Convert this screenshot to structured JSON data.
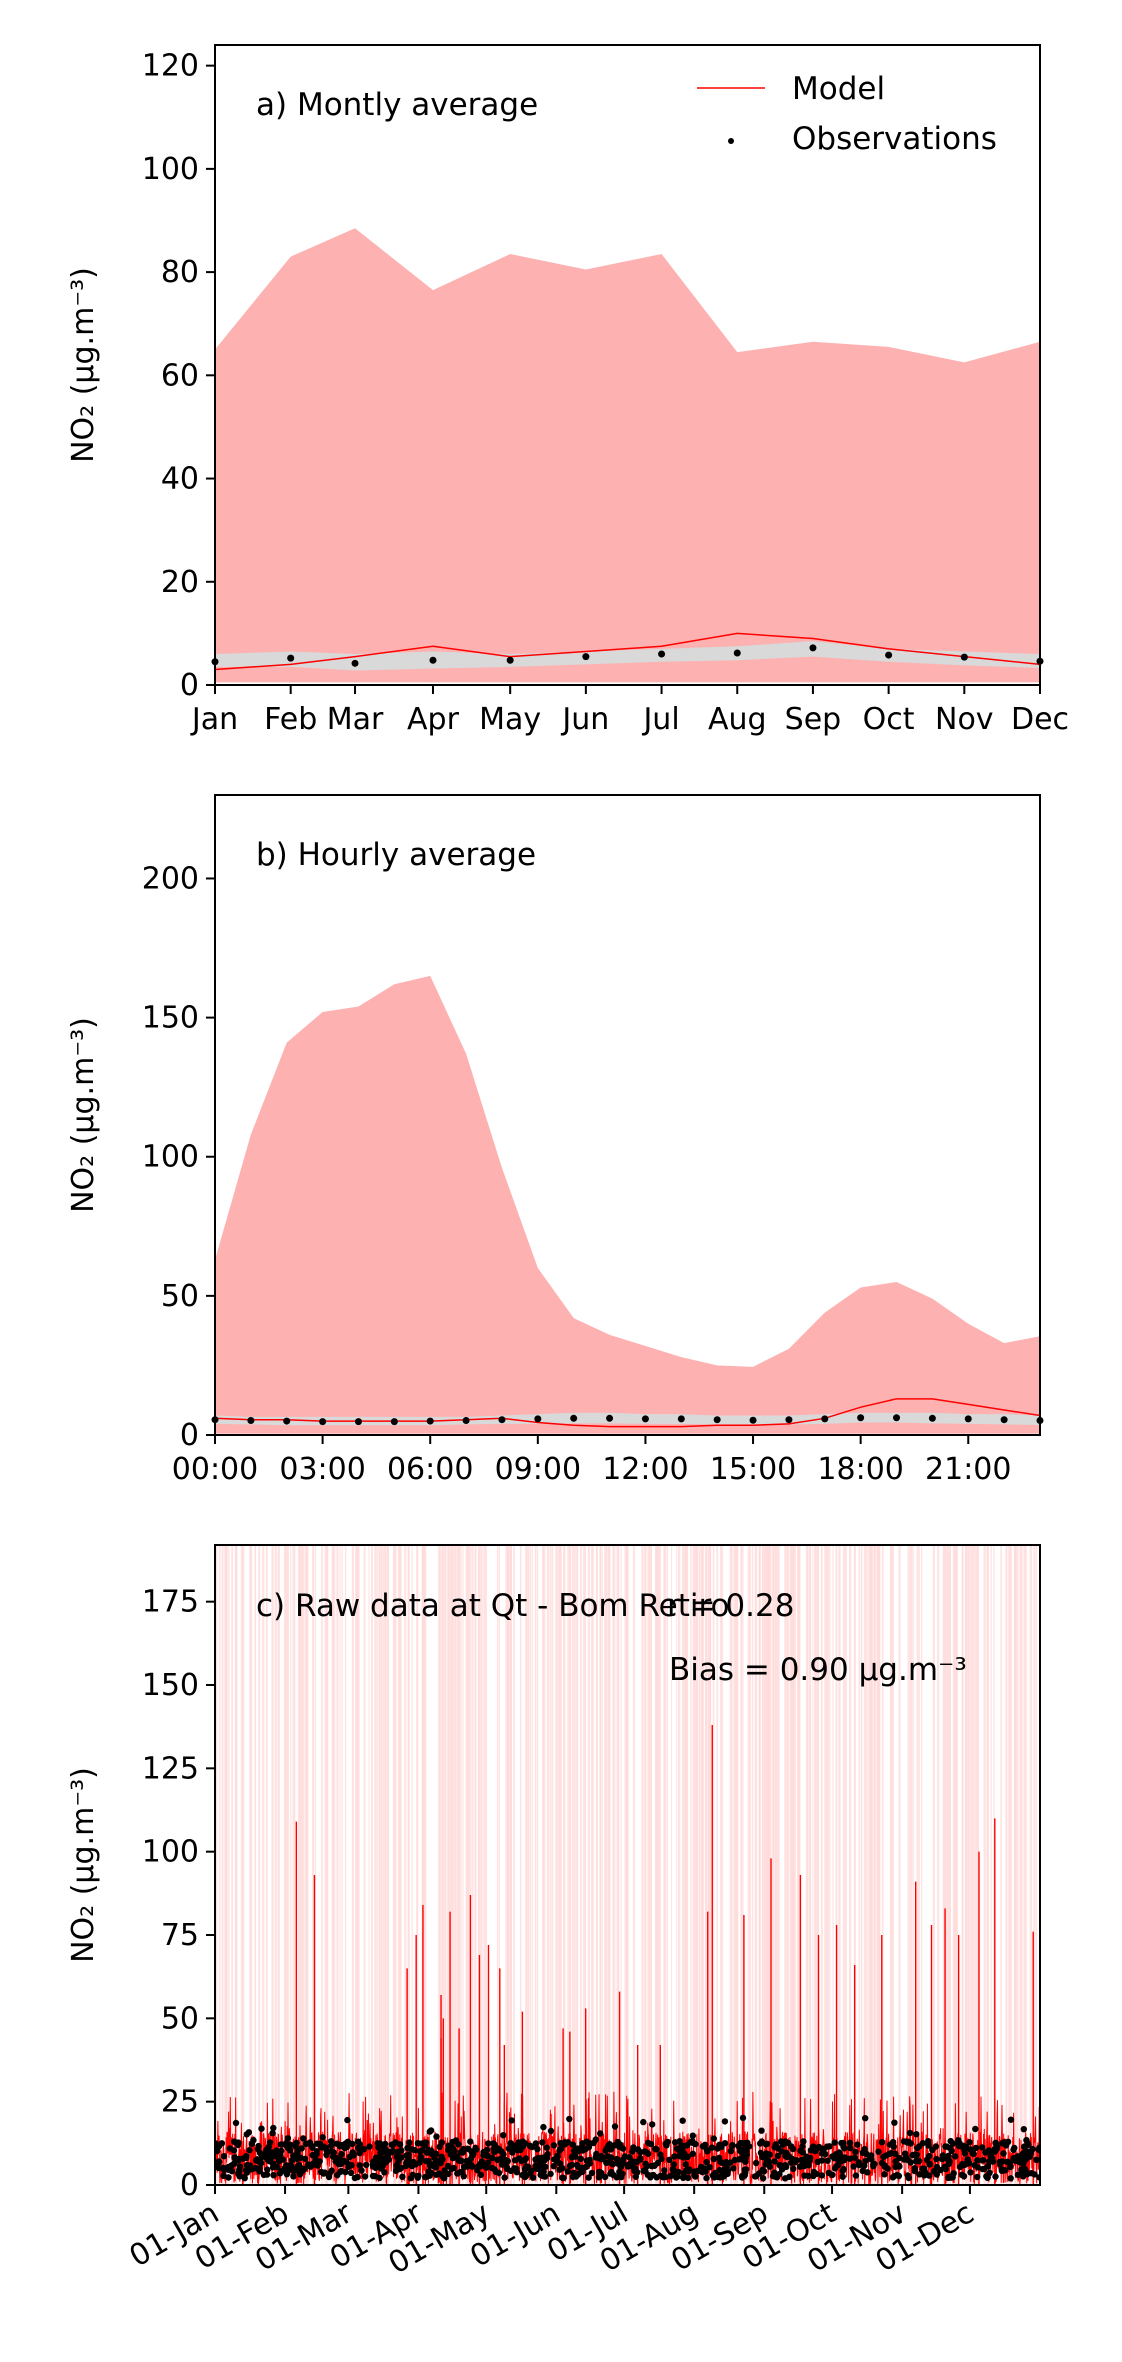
{
  "chart_data": [
    {
      "type": "area",
      "title": "a) Montly average",
      "ylabel": "NO₂ (μg.m⁻³)",
      "ylim": [
        0,
        124
      ],
      "yticks": [
        0,
        20,
        40,
        60,
        80,
        100,
        120
      ],
      "categories": [
        "Jan",
        "Feb",
        "Mar",
        "Apr",
        "May",
        "Jun",
        "Jul",
        "Aug",
        "Sep",
        "Oct",
        "Nov",
        "Dec"
      ],
      "x_positions": [
        0,
        1.0,
        1.85,
        2.88,
        3.9,
        4.9,
        5.9,
        6.9,
        7.9,
        8.9,
        9.9,
        10.9
      ],
      "xlim": [
        0,
        10.9
      ],
      "legend": {
        "position": "top-right",
        "entries": [
          "Model",
          "Observations"
        ]
      },
      "series": [
        {
          "name": "Model",
          "role": "line",
          "values": [
            3,
            4,
            5.5,
            7.5,
            5.5,
            6.5,
            7.5,
            10,
            9,
            7,
            5.5,
            4
          ]
        },
        {
          "name": "Model",
          "role": "band_upper",
          "values": [
            65,
            83,
            88.5,
            76.5,
            83.5,
            80.5,
            83.5,
            64.5,
            66.5,
            65.5,
            62.5,
            66.5
          ]
        },
        {
          "name": "Model",
          "role": "band_lower",
          "values": [
            0.5,
            0.5,
            0.5,
            0.5,
            0.5,
            0.5,
            0.5,
            0.5,
            0.5,
            0.5,
            0.5,
            0.5
          ]
        },
        {
          "name": "Observations",
          "role": "points",
          "values": [
            4.5,
            5.2,
            4.2,
            4.8,
            4.8,
            5.5,
            6,
            6.2,
            7.2,
            5.8,
            5.4,
            4.6
          ]
        },
        {
          "name": "Observations",
          "role": "band_upper",
          "values": [
            6,
            6.5,
            6,
            6.5,
            6,
            6.5,
            7,
            7.5,
            8.5,
            7,
            6.5,
            6
          ]
        },
        {
          "name": "Observations",
          "role": "band_lower",
          "values": [
            3.5,
            3.5,
            2.8,
            3.2,
            3.5,
            4,
            4.5,
            4.8,
            5.5,
            4.5,
            3.8,
            3.3
          ]
        }
      ],
      "colors": {
        "model_line": "#ff0000",
        "model_band": "#fdb1b1",
        "obs_points": "#000000",
        "obs_band": "#d9d9d9"
      }
    },
    {
      "type": "area",
      "title": "b) Hourly average",
      "ylabel": "NO₂ (μg.m⁻³)",
      "ylim": [
        0,
        230
      ],
      "yticks": [
        0,
        50,
        100,
        150,
        200
      ],
      "x": [
        0,
        1,
        2,
        3,
        4,
        5,
        6,
        7,
        8,
        9,
        10,
        11,
        12,
        13,
        14,
        15,
        16,
        17,
        18,
        19,
        20,
        21,
        22,
        23
      ],
      "xlim": [
        0,
        23
      ],
      "xticks": [
        0,
        3,
        6,
        9,
        12,
        15,
        18,
        21
      ],
      "xtick_labels": [
        "00:00",
        "03:00",
        "06:00",
        "09:00",
        "12:00",
        "15:00",
        "18:00",
        "21:00"
      ],
      "series": [
        {
          "name": "Model",
          "role": "line",
          "values": [
            6,
            5.5,
            5.5,
            5,
            5,
            5,
            5,
            5.5,
            6,
            4.5,
            3.5,
            3,
            3,
            3,
            3.5,
            3.5,
            4,
            6,
            10,
            13,
            13,
            11,
            9,
            7
          ]
        },
        {
          "name": "Model",
          "role": "band_upper",
          "values": [
            63,
            108,
            141,
            152,
            154,
            162,
            165,
            137,
            96,
            60,
            42,
            36,
            32,
            28,
            25,
            24.5,
            31,
            44,
            53,
            55,
            49,
            40,
            33,
            35.5
          ]
        },
        {
          "name": "Model",
          "role": "band_lower",
          "values": [
            0.5,
            0.5,
            0.5,
            0.5,
            0.5,
            0.5,
            0.5,
            0.5,
            0.5,
            0.5,
            0.5,
            0.5,
            0.5,
            0.5,
            0.5,
            0.5,
            0.5,
            0.5,
            0.5,
            0.5,
            0.5,
            0.5,
            0.5,
            0.5
          ]
        },
        {
          "name": "Observations",
          "role": "points",
          "values": [
            5.5,
            5.2,
            5,
            4.8,
            4.8,
            4.8,
            5,
            5.2,
            5.5,
            5.8,
            6,
            6,
            5.8,
            5.8,
            5.5,
            5.3,
            5.5,
            5.8,
            6.2,
            6.2,
            6,
            5.8,
            5.5,
            5.2
          ]
        },
        {
          "name": "Observations",
          "role": "band_upper",
          "values": [
            7,
            6.5,
            6.5,
            6.5,
            6.5,
            6.5,
            6.5,
            6.5,
            7,
            7.5,
            8,
            8,
            7.5,
            7.5,
            7,
            7,
            7,
            7.5,
            8,
            8,
            8,
            7.5,
            7.5,
            7
          ]
        },
        {
          "name": "Observations",
          "role": "band_lower",
          "values": [
            4,
            3.8,
            3.5,
            3.5,
            3.5,
            3.5,
            3.5,
            3.8,
            4,
            4,
            4.2,
            4.2,
            4,
            4,
            3.8,
            3.8,
            3.8,
            4,
            4.5,
            4.5,
            4.2,
            4,
            3.8,
            3.6
          ]
        }
      ],
      "colors": {
        "model_line": "#ff0000",
        "model_band": "#fdb1b1",
        "obs_points": "#000000",
        "obs_band": "#d9d9d9"
      }
    },
    {
      "type": "line",
      "title": "c) Raw data at Qt - Bom Retiro",
      "r_text": "r = 0.28",
      "bias_text": "Bias = 0.90 μg.m⁻³",
      "ylabel": "NO₂ (μg.m⁻³)",
      "ylim": [
        0,
        192
      ],
      "yticks": [
        0,
        25,
        50,
        75,
        100,
        125,
        150,
        175
      ],
      "xlim": [
        0,
        365
      ],
      "xticks": [
        0,
        31,
        59,
        90,
        120,
        151,
        181,
        212,
        243,
        273,
        304,
        334
      ],
      "xtick_labels": [
        "01-Jan",
        "01-Feb",
        "01-Mar",
        "01-Apr",
        "01-May",
        "01-Jun",
        "01-Jul",
        "01-Aug",
        "01-Sep",
        "01-Oct",
        "01-Nov",
        "01-Dec"
      ],
      "series": [
        {
          "name": "Model",
          "role": "line",
          "typical_range": [
            0,
            20
          ]
        },
        {
          "name": "Observations",
          "role": "points",
          "typical_range": [
            0,
            20
          ]
        }
      ],
      "model_peaks": [
        {
          "x": 36,
          "y": 109
        },
        {
          "x": 44,
          "y": 93
        },
        {
          "x": 85,
          "y": 65
        },
        {
          "x": 89,
          "y": 75
        },
        {
          "x": 92,
          "y": 84
        },
        {
          "x": 100,
          "y": 57
        },
        {
          "x": 100,
          "y": 44
        },
        {
          "x": 101,
          "y": 50
        },
        {
          "x": 104,
          "y": 82
        },
        {
          "x": 108,
          "y": 47
        },
        {
          "x": 113,
          "y": 87
        },
        {
          "x": 117,
          "y": 69
        },
        {
          "x": 121,
          "y": 72
        },
        {
          "x": 126,
          "y": 65
        },
        {
          "x": 128,
          "y": 42
        },
        {
          "x": 136,
          "y": 52
        },
        {
          "x": 154,
          "y": 47
        },
        {
          "x": 157,
          "y": 46
        },
        {
          "x": 164,
          "y": 53
        },
        {
          "x": 179,
          "y": 58
        },
        {
          "x": 187,
          "y": 42
        },
        {
          "x": 197,
          "y": 42
        },
        {
          "x": 218,
          "y": 82
        },
        {
          "x": 220,
          "y": 138
        },
        {
          "x": 234,
          "y": 81
        },
        {
          "x": 246,
          "y": 98
        },
        {
          "x": 259,
          "y": 93
        },
        {
          "x": 267,
          "y": 75
        },
        {
          "x": 275,
          "y": 78
        },
        {
          "x": 283,
          "y": 66
        },
        {
          "x": 295,
          "y": 75
        },
        {
          "x": 310,
          "y": 91
        },
        {
          "x": 317,
          "y": 78
        },
        {
          "x": 323,
          "y": 83
        },
        {
          "x": 329,
          "y": 75
        },
        {
          "x": 338,
          "y": 100
        },
        {
          "x": 345,
          "y": 110
        },
        {
          "x": 362,
          "y": 76
        },
        {
          "x": 365,
          "y": 55
        }
      ],
      "colors": {
        "model_line": "#ff0000",
        "model_band": "#ffdcdc",
        "obs_points": "#000000"
      }
    }
  ]
}
